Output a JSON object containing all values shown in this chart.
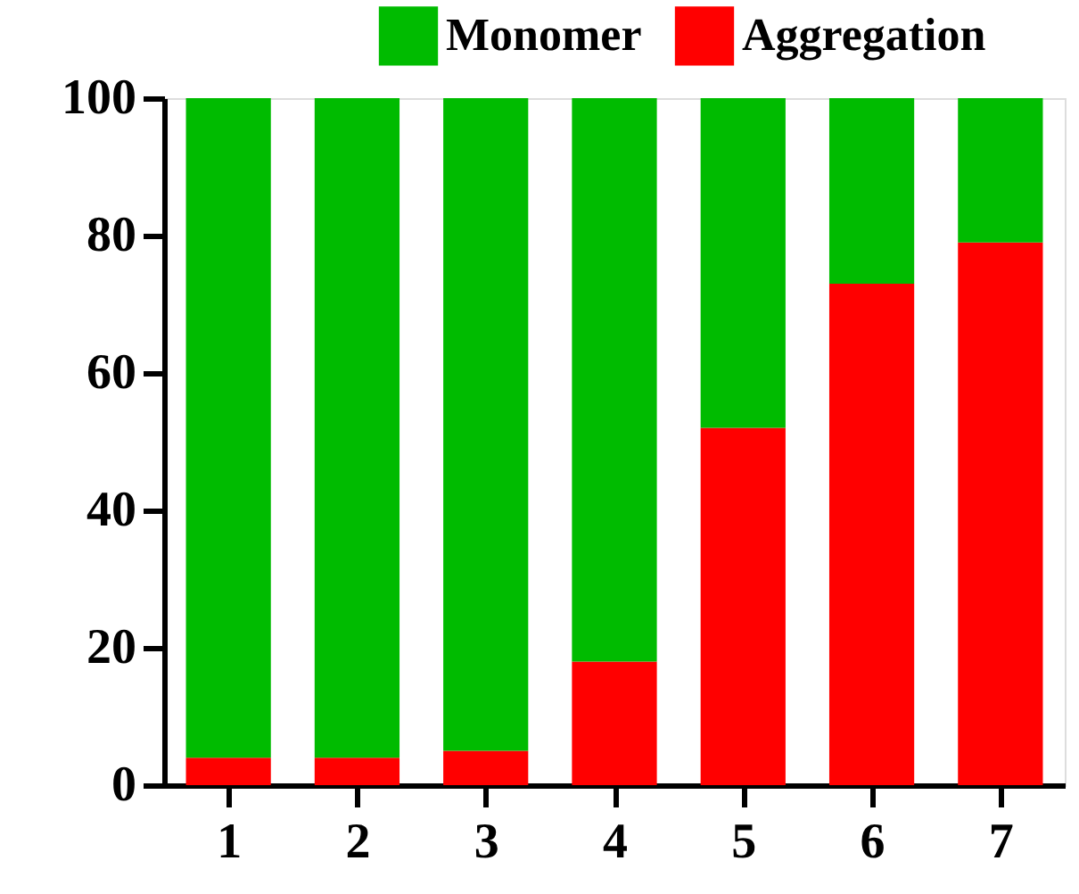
{
  "chart_data": {
    "type": "bar",
    "stacked": true,
    "categories": [
      "1",
      "2",
      "3",
      "4",
      "5",
      "6",
      "7"
    ],
    "series": [
      {
        "name": "Aggregation",
        "color": "#ff0000",
        "values": [
          4,
          4,
          5,
          18,
          52,
          73,
          79
        ]
      },
      {
        "name": "Monomer",
        "color": "#00bb00",
        "values": [
          96,
          96,
          95,
          82,
          48,
          27,
          21
        ]
      }
    ],
    "ylim": [
      0,
      100
    ],
    "yticks": [
      0,
      20,
      40,
      60,
      80,
      100
    ],
    "grid": false,
    "legend": "top right"
  }
}
